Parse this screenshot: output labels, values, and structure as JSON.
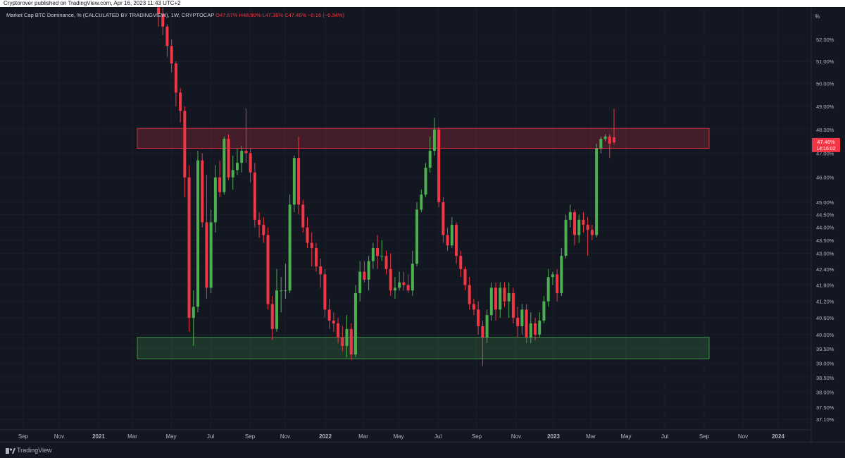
{
  "header": {
    "publisher_line": "Cryptorover published on TradingView.com, Apr 16, 2023 11:43 UTC+2"
  },
  "legend": {
    "symbol": "Market Cap BTC Dominance, % (CALCULATED BY TRADINGVIEW), 1W, CRYPTOCAP",
    "open": "O47.67%",
    "high": "H48.90%",
    "low": "L47.36%",
    "close": "C47.46%",
    "change": "−0.16 (−0.34%)"
  },
  "price_scale": {
    "unit": "%",
    "last_price": "47.46%",
    "countdown": "14:16:02"
  },
  "footer": {
    "brand": "TradingView"
  },
  "colors": {
    "up": "#26a69a",
    "up_body": "#4caf50",
    "down": "#f23645",
    "background": "#131722",
    "resistance_zone": "#f23645",
    "support_zone": "#4caf50"
  },
  "chart_data": {
    "type": "candlestick",
    "title": "Market Cap BTC Dominance, % (CALCULATED BY TRADINGVIEW), 1W, CRYPTOCAP",
    "interval": "1W",
    "y_axis": {
      "scale": "log",
      "range": [
        36.8,
        53.5
      ],
      "ticks": [
        "52.00%",
        "51.00%",
        "50.00%",
        "49.00%",
        "48.00%",
        "47.00%",
        "46.00%",
        "45.00%",
        "44.50%",
        "44.00%",
        "43.50%",
        "43.00%",
        "42.40%",
        "41.80%",
        "41.20%",
        "40.60%",
        "40.00%",
        "39.50%",
        "39.00%",
        "38.50%",
        "38.00%",
        "37.50%",
        "37.10%"
      ]
    },
    "x_axis": {
      "labels": [
        "Sep",
        "Nov",
        "2021",
        "Mar",
        "May",
        "Jul",
        "Sep",
        "Nov",
        "2022",
        "Mar",
        "May",
        "Jul",
        "Sep",
        "Nov",
        "2023",
        "Mar",
        "May",
        "Jul",
        "Sep",
        "Nov",
        "2024"
      ],
      "bold": [
        "2021",
        "2022",
        "2023",
        "2024"
      ]
    },
    "zones": [
      {
        "name": "resistance",
        "from": "2021-01",
        "to": "2023-09",
        "low": 47.2,
        "high": 48.05
      },
      {
        "name": "support",
        "from": "2021-01",
        "to": "2023-09",
        "low": 39.15,
        "high": 39.9
      }
    ],
    "candles": [
      [
        53.5,
        53.2,
        53.6,
        52.6
      ],
      [
        53.2,
        52.6,
        53.5,
        52.2
      ],
      [
        52.6,
        51.7,
        52.7,
        51.2
      ],
      [
        51.7,
        50.9,
        52.0,
        50.5
      ],
      [
        50.9,
        49.6,
        51.0,
        49.0
      ],
      [
        49.6,
        48.8,
        49.8,
        48.3
      ],
      [
        48.8,
        46.0,
        49.0,
        45.2
      ],
      [
        46.0,
        40.6,
        46.5,
        40.1
      ],
      [
        40.6,
        41.0,
        41.6,
        39.6
      ],
      [
        41.0,
        46.7,
        47.1,
        40.8
      ],
      [
        46.7,
        44.2,
        47.0,
        44.0
      ],
      [
        44.2,
        41.7,
        46.1,
        41.3
      ],
      [
        41.7,
        44.2,
        44.7,
        41.5
      ],
      [
        44.2,
        46.0,
        46.5,
        43.8
      ],
      [
        46.0,
        45.4,
        46.7,
        45.2
      ],
      [
        45.4,
        47.6,
        47.7,
        45.3
      ],
      [
        47.6,
        46.0,
        47.8,
        45.9
      ],
      [
        46.0,
        46.3,
        46.9,
        45.5
      ],
      [
        46.3,
        46.6,
        47.2,
        46.1
      ],
      [
        46.6,
        47.1,
        47.3,
        46.2
      ],
      [
        47.1,
        47.0,
        48.9,
        46.6
      ],
      [
        47.0,
        46.2,
        47.2,
        45.8
      ],
      [
        46.2,
        44.3,
        46.6,
        44.0
      ],
      [
        44.3,
        44.1,
        44.6,
        43.6
      ],
      [
        44.1,
        43.7,
        44.4,
        43.4
      ],
      [
        43.7,
        41.1,
        44.0,
        40.9
      ],
      [
        41.1,
        40.2,
        41.4,
        39.8
      ],
      [
        40.2,
        41.6,
        42.4,
        40.1
      ],
      [
        41.6,
        41.6,
        42.1,
        40.8
      ],
      [
        41.6,
        41.6,
        42.6,
        41.3
      ],
      [
        41.6,
        44.9,
        45.3,
        41.5
      ],
      [
        44.9,
        46.8,
        46.9,
        44.6
      ],
      [
        46.8,
        44.9,
        47.7,
        44.5
      ],
      [
        44.9,
        44.0,
        45.1,
        43.8
      ],
      [
        44.0,
        43.4,
        44.4,
        43.2
      ],
      [
        43.4,
        43.2,
        43.8,
        42.5
      ],
      [
        43.2,
        42.5,
        43.4,
        42.3
      ],
      [
        42.5,
        42.2,
        42.8,
        41.7
      ],
      [
        42.2,
        40.9,
        42.4,
        40.6
      ],
      [
        40.9,
        40.5,
        41.3,
        40.2
      ],
      [
        40.5,
        40.4,
        40.8,
        40.1
      ],
      [
        40.4,
        39.9,
        40.6,
        39.7
      ],
      [
        39.9,
        39.6,
        40.3,
        39.4
      ],
      [
        39.6,
        40.2,
        40.7,
        39.2
      ],
      [
        40.2,
        39.3,
        40.4,
        39.1
      ],
      [
        39.3,
        41.5,
        41.8,
        39.2
      ],
      [
        41.5,
        42.3,
        42.7,
        41.2
      ],
      [
        42.3,
        42.0,
        42.7,
        41.9
      ],
      [
        42.0,
        42.7,
        42.9,
        41.6
      ],
      [
        42.7,
        43.2,
        43.4,
        42.4
      ],
      [
        43.2,
        42.9,
        43.7,
        42.4
      ],
      [
        42.9,
        42.9,
        43.5,
        42.7
      ],
      [
        42.9,
        42.4,
        43.1,
        42.2
      ],
      [
        42.4,
        41.6,
        43.0,
        41.4
      ],
      [
        41.6,
        41.7,
        42.1,
        41.3
      ],
      [
        41.7,
        41.9,
        42.3,
        41.6
      ],
      [
        41.9,
        41.8,
        42.3,
        41.6
      ],
      [
        41.8,
        41.6,
        42.2,
        41.5
      ],
      [
        41.6,
        42.6,
        43.1,
        41.4
      ],
      [
        42.6,
        44.7,
        45.0,
        42.5
      ],
      [
        44.7,
        45.3,
        45.5,
        44.6
      ],
      [
        45.3,
        46.4,
        46.6,
        45.2
      ],
      [
        46.4,
        47.1,
        47.7,
        46.2
      ],
      [
        47.1,
        48.0,
        48.5,
        46.9
      ],
      [
        48.0,
        45.0,
        48.1,
        44.8
      ],
      [
        45.0,
        43.7,
        45.2,
        43.4
      ],
      [
        43.7,
        43.3,
        44.0,
        43.1
      ],
      [
        43.3,
        44.1,
        44.4,
        43.2
      ],
      [
        44.1,
        42.9,
        44.2,
        42.6
      ],
      [
        42.9,
        42.4,
        43.1,
        42.1
      ],
      [
        42.4,
        41.8,
        42.5,
        41.6
      ],
      [
        41.8,
        41.1,
        42.1,
        40.9
      ],
      [
        41.1,
        40.9,
        41.3,
        40.7
      ],
      [
        40.9,
        40.3,
        41.2,
        40.0
      ],
      [
        40.3,
        39.9,
        40.5,
        38.9
      ],
      [
        39.9,
        40.7,
        40.9,
        39.7
      ],
      [
        40.7,
        41.7,
        41.9,
        40.5
      ],
      [
        41.7,
        40.9,
        41.9,
        40.5
      ],
      [
        40.9,
        41.7,
        41.9,
        40.6
      ],
      [
        41.7,
        41.2,
        41.9,
        41.0
      ],
      [
        41.2,
        41.5,
        41.9,
        40.6
      ],
      [
        41.5,
        40.6,
        41.7,
        40.4
      ],
      [
        40.6,
        40.3,
        41.0,
        39.9
      ],
      [
        40.3,
        40.9,
        41.1,
        40.0
      ],
      [
        40.9,
        39.9,
        41.1,
        39.7
      ],
      [
        39.9,
        40.4,
        40.8,
        39.7
      ],
      [
        40.4,
        40.0,
        40.6,
        39.8
      ],
      [
        40.0,
        40.5,
        40.8,
        39.9
      ],
      [
        40.5,
        41.2,
        41.4,
        40.4
      ],
      [
        41.2,
        42.1,
        42.4,
        41.0
      ],
      [
        42.1,
        42.2,
        42.3,
        41.8
      ],
      [
        42.2,
        41.5,
        42.4,
        41.2
      ],
      [
        41.5,
        42.9,
        43.2,
        41.4
      ],
      [
        42.9,
        44.3,
        44.5,
        42.8
      ],
      [
        44.3,
        44.6,
        44.9,
        44.0
      ],
      [
        44.6,
        43.7,
        44.7,
        43.3
      ],
      [
        43.7,
        44.3,
        44.5,
        43.4
      ],
      [
        44.3,
        44.1,
        44.6,
        43.8
      ],
      [
        44.1,
        43.9,
        44.4,
        42.9
      ],
      [
        43.9,
        43.7,
        44.1,
        43.5
      ],
      [
        43.7,
        47.2,
        47.4,
        43.6
      ],
      [
        47.2,
        47.6,
        47.7,
        47.0
      ],
      [
        47.6,
        47.7,
        47.8,
        47.5
      ],
      [
        47.7,
        47.4,
        47.8,
        46.8
      ],
      [
        47.67,
        47.46,
        48.9,
        47.36
      ]
    ]
  }
}
